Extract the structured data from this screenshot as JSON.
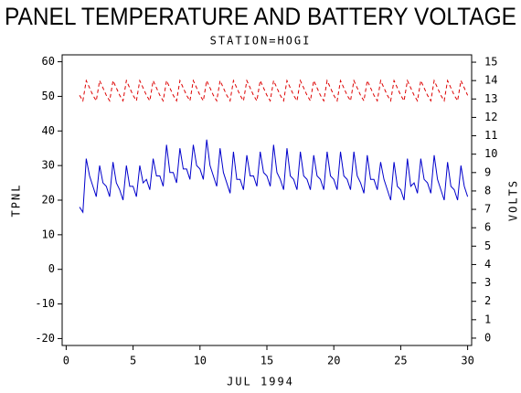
{
  "chart_data": {
    "type": "line",
    "title": "PANEL TEMPERATURE AND BATTERY VOLTAGE",
    "subtitle": "STATION=HOGI",
    "xlabel": "JUL 1994",
    "ylabel": "TPNL",
    "y2label": "VOLTS",
    "xlim": [
      -0.3,
      30.3
    ],
    "xticks": [
      0,
      5,
      10,
      15,
      20,
      25,
      30
    ],
    "ylim": [
      -22,
      62
    ],
    "yticks": [
      -20,
      -10,
      0,
      10,
      20,
      30,
      40,
      50,
      60
    ],
    "y2lim": [
      -0.4,
      15.4
    ],
    "y2ticks": [
      0,
      1,
      2,
      3,
      4,
      5,
      6,
      7,
      8,
      9,
      10,
      11,
      12,
      13,
      14,
      15
    ],
    "x": [
      1,
      1.25,
      1.5,
      1.75,
      2,
      2.25,
      2.5,
      2.75,
      3,
      3.25,
      3.5,
      3.75,
      4,
      4.25,
      4.5,
      4.75,
      5,
      5.25,
      5.5,
      5.75,
      6,
      6.25,
      6.5,
      6.75,
      7,
      7.25,
      7.5,
      7.75,
      8,
      8.25,
      8.5,
      8.75,
      9,
      9.25,
      9.5,
      9.75,
      10,
      10.25,
      10.5,
      10.75,
      11,
      11.25,
      11.5,
      11.75,
      12,
      12.25,
      12.5,
      12.75,
      13,
      13.25,
      13.5,
      13.75,
      14,
      14.25,
      14.5,
      14.75,
      15,
      15.25,
      15.5,
      15.75,
      16,
      16.25,
      16.5,
      16.75,
      17,
      17.25,
      17.5,
      17.75,
      18,
      18.25,
      18.5,
      18.75,
      19,
      19.25,
      19.5,
      19.75,
      20,
      20.25,
      20.5,
      20.75,
      21,
      21.25,
      21.5,
      21.75,
      22,
      22.25,
      22.5,
      22.75,
      23,
      23.25,
      23.5,
      23.75,
      24,
      24.25,
      24.5,
      24.75,
      25,
      25.25,
      25.5,
      25.75,
      26,
      26.25,
      26.5,
      26.75,
      27,
      27.25,
      27.5,
      27.75,
      28,
      28.25,
      28.5,
      28.75,
      29,
      29.25,
      29.5,
      29.75,
      30
    ],
    "series": [
      {
        "color": "#0000cc",
        "dash": false,
        "axis": "y",
        "values": [
          18,
          16.5,
          32,
          27,
          24,
          21,
          30,
          25,
          24,
          21,
          31,
          25,
          23,
          20,
          30,
          24,
          24,
          21,
          30,
          25,
          26,
          23,
          32,
          27,
          27,
          24,
          36,
          28,
          28,
          25,
          35,
          29,
          29,
          26,
          36,
          30,
          29,
          26,
          37.5,
          30,
          27,
          24,
          35,
          28,
          25,
          22,
          34,
          26,
          26,
          23,
          33,
          27,
          27,
          24,
          34,
          28,
          27,
          24,
          36,
          28,
          26,
          23,
          35,
          27,
          26,
          23,
          34,
          27,
          26,
          23,
          33,
          27,
          26,
          23,
          34,
          27,
          26,
          23,
          34,
          27,
          26,
          23,
          34,
          27,
          25,
          22,
          33,
          26,
          26,
          23,
          31,
          26,
          23,
          20,
          31,
          24,
          23,
          20,
          32,
          24,
          25,
          22,
          32,
          26,
          25,
          22,
          33,
          26,
          23,
          20,
          31,
          24,
          23,
          20,
          30,
          24,
          21
        ]
      },
      {
        "color": "#dd0000",
        "dash": true,
        "axis": "y2",
        "values": [
          13.2,
          12.9,
          14,
          13.6,
          13.2,
          12.9,
          14,
          13.6,
          13.2,
          12.9,
          14,
          13.6,
          13.2,
          12.9,
          14,
          13.6,
          13.2,
          12.9,
          14,
          13.6,
          13.2,
          12.9,
          14,
          13.6,
          13.2,
          12.9,
          14,
          13.6,
          13.2,
          12.9,
          14,
          13.6,
          13.2,
          12.9,
          14,
          13.6,
          13.2,
          12.9,
          14,
          13.6,
          13.2,
          12.9,
          14,
          13.6,
          13.2,
          12.9,
          14,
          13.6,
          13.2,
          12.9,
          14,
          13.6,
          13.2,
          12.9,
          14,
          13.6,
          13.2,
          12.9,
          14,
          13.6,
          13.2,
          12.9,
          14,
          13.6,
          13.2,
          12.9,
          14,
          13.6,
          13.2,
          12.9,
          14,
          13.6,
          13.2,
          12.9,
          14,
          13.6,
          13.2,
          12.9,
          14,
          13.6,
          13.2,
          12.9,
          14,
          13.6,
          13.2,
          12.9,
          14,
          13.6,
          13.2,
          12.9,
          14,
          13.6,
          13.2,
          12.9,
          14,
          13.6,
          13.2,
          12.9,
          14,
          13.6,
          13.2,
          12.9,
          14,
          13.6,
          13.2,
          12.9,
          14,
          13.6,
          13.2,
          12.9,
          14,
          13.6,
          13.2,
          12.9,
          14,
          13.6,
          13.2
        ]
      }
    ]
  }
}
